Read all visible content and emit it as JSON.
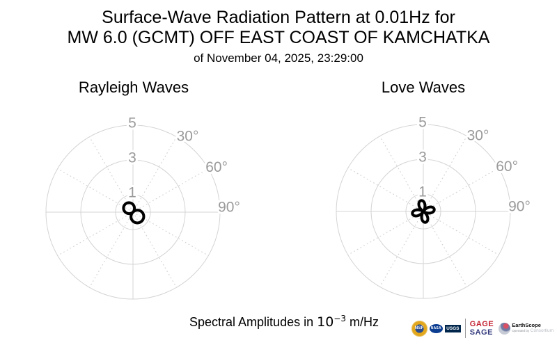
{
  "header": {
    "title_line1": "Surface-Wave Radiation Pattern at 0.01Hz for",
    "title_line2": "MW 6.0 (GCMT) OFF EAST COAST OF KAMCHATKA",
    "title_line3": "of November 04, 2025, 23:29:00"
  },
  "footer": {
    "caption_prefix": "Spectral Amplitudes in ",
    "caption_base": "10",
    "caption_exponent": "−3",
    "caption_suffix": " m/Hz"
  },
  "logos": {
    "nsf_label": "NSF",
    "nasa_label": "NASA",
    "usgs_label": "USGS",
    "gage_label": "GAGE",
    "sage_label": "SAGE",
    "gage_color": "#c32030",
    "sage_color": "#333a7d",
    "earthscope_name": "EarthScope",
    "operated_by": "Operated by",
    "consortium": "Consortium"
  },
  "chart_style": {
    "grid_color": "#d4d4d4",
    "tick_label_color": "#9a9a9a",
    "pattern_color": "#000000",
    "pattern_linewidth": 4
  },
  "chart_data": [
    {
      "type": "polar_line",
      "title": "Rayleigh Waves",
      "r_ticks": [
        1,
        3,
        5
      ],
      "radial_tick_labels": [
        "1",
        "3",
        "5"
      ],
      "r_axis_max": 5,
      "spoke_step_deg": 30,
      "theta_tick_labels": [
        {
          "label": "30°",
          "angle_deg": 30
        },
        {
          "label": "60°",
          "angle_deg": 60
        },
        {
          "label": "90°",
          "angle_deg": 90
        }
      ],
      "azimuth_convention": "0 deg = up (north), clockwise positive",
      "units": "10^-3 m/Hz",
      "series": {
        "name": "rayleigh-radiation-amplitude",
        "shape": "two-lobed figure-eight through origin",
        "formula": "r(az) = |0.68*cos(az - 135deg) + 0.04|",
        "params": {
          "A": 0.68,
          "B": 0.04,
          "harmonic": 1,
          "phase_deg": 135
        },
        "peak_amplitude": 0.72,
        "lobe_azimuths_deg": [
          135,
          315
        ],
        "sampled_azimuth_deg": [
          0,
          15,
          30,
          45,
          60,
          75,
          90,
          105,
          120,
          135,
          150,
          165,
          180,
          195,
          210,
          225,
          240,
          255,
          270,
          285,
          300,
          315,
          330,
          345
        ],
        "sampled_amplitude": [
          0.441,
          0.3,
          0.136,
          0.04,
          0.216,
          0.38,
          0.521,
          0.629,
          0.697,
          0.72,
          0.697,
          0.629,
          0.521,
          0.38,
          0.216,
          0.04,
          0.136,
          0.3,
          0.441,
          0.549,
          0.617,
          0.64,
          0.617,
          0.549
        ]
      }
    },
    {
      "type": "polar_line",
      "title": "Love Waves",
      "r_ticks": [
        1,
        3,
        5
      ],
      "radial_tick_labels": [
        "1",
        "3",
        "5"
      ],
      "r_axis_max": 5,
      "spoke_step_deg": 30,
      "theta_tick_labels": [
        {
          "label": "30°",
          "angle_deg": 30
        },
        {
          "label": "60°",
          "angle_deg": 60
        },
        {
          "label": "90°",
          "angle_deg": 90
        }
      ],
      "azimuth_convention": "0 deg = up (north), clockwise positive",
      "units": "10^-3 m/Hz",
      "series": {
        "name": "love-radiation-amplitude",
        "shape": "four-lobed cloverleaf through origin",
        "formula": "r(az) = 0.64*|cos(2*(az - 78deg))|",
        "params": {
          "A": 0.64,
          "B": 0,
          "harmonic": 2,
          "phase_deg": 78
        },
        "peak_amplitude": 0.64,
        "lobe_azimuths_deg": [
          78,
          168,
          258,
          348
        ],
        "sampled_azimuth_deg": [
          0,
          15,
          30,
          45,
          60,
          75,
          90,
          105,
          120,
          135,
          150,
          165,
          180,
          195,
          210,
          225,
          240,
          255,
          270,
          285,
          300,
          315,
          330,
          345
        ],
        "sampled_amplitude": [
          0.585,
          0.376,
          0.067,
          0.26,
          0.518,
          0.637,
          0.585,
          0.376,
          0.067,
          0.26,
          0.518,
          0.637,
          0.585,
          0.376,
          0.067,
          0.26,
          0.518,
          0.637,
          0.585,
          0.376,
          0.067,
          0.26,
          0.518,
          0.637
        ]
      }
    }
  ]
}
